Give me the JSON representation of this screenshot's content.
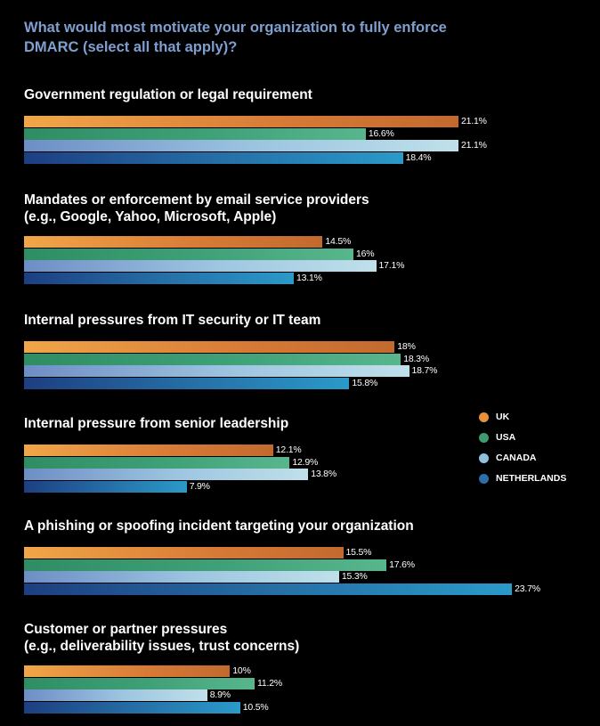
{
  "title": "What would most motivate your organization to fully enforce DMARC (select all that apply)?",
  "legend": [
    {
      "label": "UK",
      "color": "#e9913a"
    },
    {
      "label": "USA",
      "color": "#3f9a72"
    },
    {
      "label": "CANADA",
      "color": "#8fc1de"
    },
    {
      "label": "NETHERLANDS",
      "color": "#2c6ea8"
    }
  ],
  "chart_data": {
    "type": "bar",
    "orientation": "horizontal",
    "categories": [
      "Government regulation or legal requirement",
      "Mandates or enforcement by email service providers\n(e.g., Google, Yahoo, Microsoft, Apple)",
      "Internal pressures from IT security or IT team",
      "Internal pressure from senior leadership",
      "A phishing or spoofing incident targeting your organization",
      "Customer or partner pressures\n(e.g., deliverability issues, trust concerns)"
    ],
    "series": [
      {
        "name": "UK",
        "values": [
          21.1,
          14.5,
          18,
          12.1,
          15.5,
          10
        ],
        "labels": [
          "21.1%",
          "14.5%",
          "18%",
          "12.1%",
          "15.5%",
          "10%"
        ]
      },
      {
        "name": "USA",
        "values": [
          16.6,
          16,
          18.3,
          12.9,
          17.6,
          11.2
        ],
        "labels": [
          "16.6%",
          "16%",
          "18.3%",
          "12.9%",
          "17.6%",
          "11.2%"
        ]
      },
      {
        "name": "CANADA",
        "values": [
          21.1,
          17.1,
          18.7,
          13.8,
          15.3,
          8.9
        ],
        "labels": [
          "21.1%",
          "17.1%",
          "18.7%",
          "13.8%",
          "15.3%",
          "8.9%"
        ]
      },
      {
        "name": "NETHERLANDS",
        "values": [
          18.4,
          13.1,
          15.8,
          7.9,
          23.7,
          10.5
        ],
        "labels": [
          "18.4%",
          "13.1%",
          "15.8%",
          "7.9%",
          "23.7%",
          "10.5%"
        ]
      }
    ],
    "xlim": [
      0,
      25
    ],
    "legend_position": "right"
  }
}
